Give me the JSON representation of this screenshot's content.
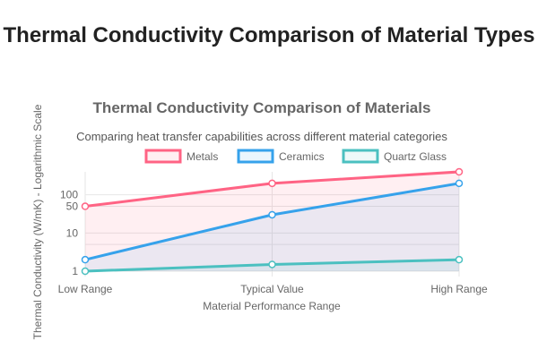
{
  "page_title": "Thermal Conductivity Comparison of Material Types",
  "chart_data": {
    "type": "line",
    "title": "Thermal Conductivity Comparison of Materials",
    "subtitle": "Comparing heat transfer capabilities across different material categories",
    "xlabel": "Material Performance Range",
    "ylabel": "Thermal Conductivity (W/mK) - Logarithmic Scale",
    "yscale": "log",
    "ylim": [
      1,
      400
    ],
    "yticks": [
      1,
      10,
      50,
      100
    ],
    "categories": [
      "Low Range",
      "Typical Value",
      "High Range"
    ],
    "legend_position": "top",
    "grid": true,
    "series": [
      {
        "name": "Metals",
        "values": [
          50,
          200,
          400
        ],
        "color": "#ff6384",
        "fill": "rgba(255,99,132,0.1)"
      },
      {
        "name": "Ceramics",
        "values": [
          2,
          30,
          200
        ],
        "color": "#36a2eb",
        "fill": "rgba(54,162,235,0.1)"
      },
      {
        "name": "Quartz Glass",
        "values": [
          1,
          1.5,
          2
        ],
        "color": "#4bc0c0",
        "fill": "rgba(75,192,192,0.1)"
      }
    ]
  }
}
